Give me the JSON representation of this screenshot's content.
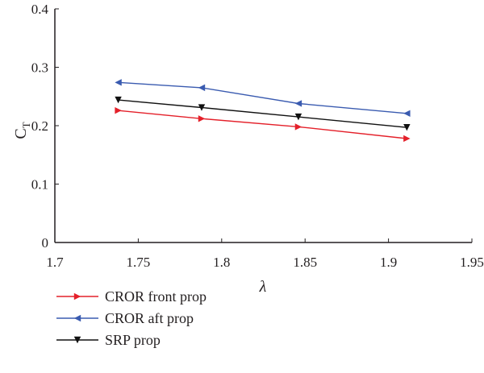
{
  "chart_data": {
    "type": "line",
    "xlabel": "λ",
    "ylabel": "C",
    "ylabel_sub": "T",
    "xlim": [
      1.7,
      1.95
    ],
    "ylim": [
      0,
      0.4
    ],
    "xticks": [
      1.7,
      1.75,
      1.8,
      1.85,
      1.9,
      1.95
    ],
    "xtick_labels": [
      "1.7",
      "1.75",
      "1.8",
      "1.85",
      "1.9",
      "1.95"
    ],
    "yticks": [
      0,
      0.1,
      0.2,
      0.3,
      0.4
    ],
    "ytick_labels": [
      "0",
      "0.1",
      "0.2",
      "0.3",
      "0.4"
    ],
    "grid": false,
    "legend_position": "below",
    "series": [
      {
        "name": "CROR front prop",
        "color": "#e4202a",
        "marker": "triangle-right",
        "x": [
          1.738,
          1.788,
          1.846,
          1.911
        ],
        "y": [
          0.226,
          0.212,
          0.198,
          0.178
        ]
      },
      {
        "name": "CROR aft prop",
        "color": "#3a5bb0",
        "marker": "triangle-left",
        "x": [
          1.738,
          1.788,
          1.846,
          1.911
        ],
        "y": [
          0.274,
          0.265,
          0.238,
          0.221
        ]
      },
      {
        "name": "SRP prop",
        "color": "#111111",
        "marker": "triangle-down",
        "x": [
          1.738,
          1.788,
          1.846,
          1.911
        ],
        "y": [
          0.244,
          0.231,
          0.215,
          0.197
        ]
      }
    ]
  }
}
